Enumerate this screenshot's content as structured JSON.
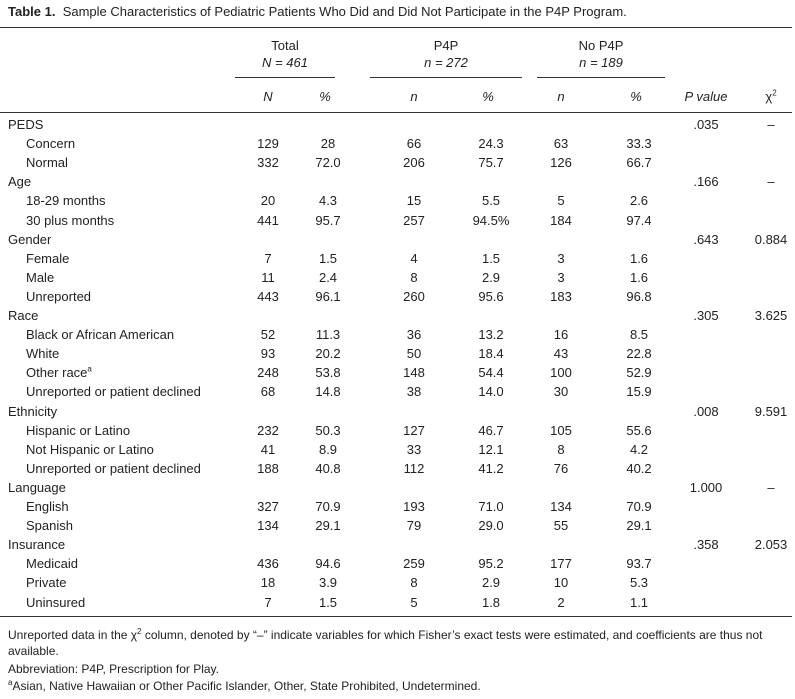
{
  "caption": {
    "label": "Table 1.",
    "text": "Sample Characteristics of Pediatric Patients Who Did and Did Not Participate in the P4P Program."
  },
  "groups": [
    {
      "name": "Total",
      "count": "N = 461"
    },
    {
      "name": "P4P",
      "count": "n = 272"
    },
    {
      "name": "No P4P",
      "count": "n = 189"
    }
  ],
  "columns": [
    "N",
    "%",
    "n",
    "%",
    "n",
    "%",
    "P value",
    {
      "text": "χ",
      "sup": "2"
    }
  ],
  "sections": [
    {
      "label": "PEDS",
      "p": ".035",
      "chi": "–",
      "items": [
        {
          "label": "Concern",
          "cells": [
            "129",
            "28",
            "66",
            "24.3",
            "63",
            "33.3"
          ]
        },
        {
          "label": "Normal",
          "cells": [
            "332",
            "72.0",
            "206",
            "75.7",
            "126",
            "66.7"
          ]
        }
      ]
    },
    {
      "label": "Age",
      "p": ".166",
      "chi": "–",
      "items": [
        {
          "label": "18-29 months",
          "cells": [
            "20",
            "4.3",
            "15",
            "5.5",
            "5",
            "2.6"
          ]
        },
        {
          "label": "30 plus months",
          "cells": [
            "441",
            "95.7",
            "257",
            "94.5%",
            "184",
            "97.4"
          ]
        }
      ]
    },
    {
      "label": "Gender",
      "p": ".643",
      "chi": "0.884",
      "items": [
        {
          "label": "Female",
          "cells": [
            "7",
            "1.5",
            "4",
            "1.5",
            "3",
            "1.6"
          ]
        },
        {
          "label": "Male",
          "cells": [
            "11",
            "2.4",
            "8",
            "2.9",
            "3",
            "1.6"
          ]
        },
        {
          "label": "Unreported",
          "cells": [
            "443",
            "96.1",
            "260",
            "95.6",
            "183",
            "96.8"
          ]
        }
      ]
    },
    {
      "label": "Race",
      "p": ".305",
      "chi": "3.625",
      "items": [
        {
          "label": "Black or African American",
          "cells": [
            "52",
            "11.3",
            "36",
            "13.2",
            "16",
            "8.5"
          ]
        },
        {
          "label": "White",
          "cells": [
            "93",
            "20.2",
            "50",
            "18.4",
            "43",
            "22.8"
          ]
        },
        {
          "label": "Other race",
          "sup": "a",
          "cells": [
            "248",
            "53.8",
            "148",
            "54.4",
            "100",
            "52.9"
          ]
        },
        {
          "label": "Unreported or patient declined",
          "cells": [
            "68",
            "14.8",
            "38",
            "14.0",
            "30",
            "15.9"
          ]
        }
      ]
    },
    {
      "label": "Ethnicity",
      "p": ".008",
      "chi": "9.591",
      "items": [
        {
          "label": "Hispanic or Latino",
          "cells": [
            "232",
            "50.3",
            "127",
            "46.7",
            "105",
            "55.6"
          ]
        },
        {
          "label": "Not Hispanic or Latino",
          "cells": [
            "41",
            "8.9",
            "33",
            "12.1",
            "8",
            "4.2"
          ]
        },
        {
          "label": "Unreported or patient declined",
          "cells": [
            "188",
            "40.8",
            "112",
            "41.2",
            "76",
            "40.2"
          ]
        }
      ]
    },
    {
      "label": "Language",
      "p": "1.000",
      "chi": "–",
      "items": [
        {
          "label": "English",
          "cells": [
            "327",
            "70.9",
            "193",
            "71.0",
            "134",
            "70.9"
          ]
        },
        {
          "label": "Spanish",
          "cells": [
            "134",
            "29.1",
            "79",
            "29.0",
            "55",
            "29.1"
          ]
        }
      ]
    },
    {
      "label": "Insurance",
      "p": ".358",
      "chi": "2.053",
      "items": [
        {
          "label": "Medicaid",
          "cells": [
            "436",
            "94.6",
            "259",
            "95.2",
            "177",
            "93.7"
          ]
        },
        {
          "label": "Private",
          "cells": [
            "18",
            "3.9",
            "8",
            "2.9",
            "10",
            "5.3"
          ]
        },
        {
          "label": "Uninsured",
          "cells": [
            "7",
            "1.5",
            "5",
            "1.8",
            "2",
            "1.1"
          ]
        }
      ]
    }
  ],
  "footnotes": [
    {
      "before": "Unreported data in the χ",
      "sup": "2",
      "after": " column, denoted by “–” indicate variables for which Fisher’s exact tests were estimated, and coefficients are thus not available."
    },
    {
      "text": "Abbreviation: P4P, Prescription for Play."
    },
    {
      "sup": "a",
      "after": "Asian, Native Hawaiian or Other Pacific Islander, Other, State Prohibited, Undetermined."
    }
  ]
}
